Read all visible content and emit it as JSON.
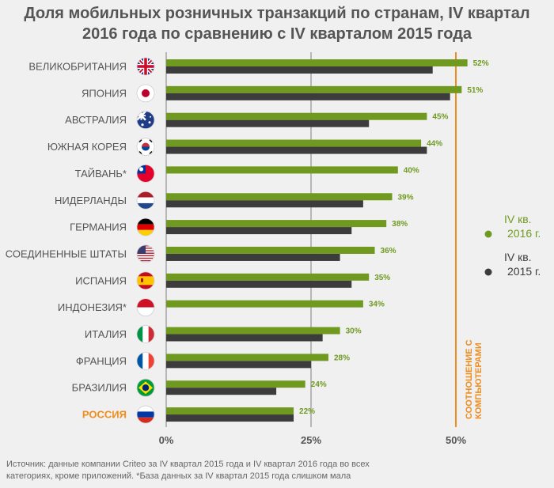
{
  "title": {
    "line1": "Доля мобильных розничных транзакций по странам, IV квартал",
    "line2": "2016 года по сравнению с IV  кварталом 2015 года"
  },
  "colors": {
    "green": "#6f9a1f",
    "dark": "#3c3c3c",
    "orange": "#ef8c1c",
    "grid": "#b7b7b7",
    "label": "#555555",
    "highlight": "#ef8c1c"
  },
  "reference_line": {
    "label": "СООТНОШЕНИЕ С КОМПЬЮТЕРАМИ",
    "value": 50
  },
  "footnote": {
    "line1": "Источник: данные компании Criteo за IV квартал 2015 года и IV квартал 2016 года во всех",
    "line2": "категориях, кроме приложений. *База данных за IV квартал 2015 года слишком мала"
  },
  "chart_data": {
    "type": "bar",
    "orientation": "horizontal",
    "categories": [
      "ВЕЛИКОБРИТАНИЯ",
      "ЯПОНИЯ",
      "АВСТРАЛИЯ",
      "ЮЖНАЯ КОРЕЯ",
      "ТАЙВАНЬ*",
      "НИДЕРЛАНДЫ",
      "ГЕРМАНИЯ",
      "СОЕДИНЕННЫЕ ШТАТЫ",
      "ИСПАНИЯ",
      "ИНДОНЕЗИЯ*",
      "ИТАЛИЯ",
      "ФРАНЦИЯ",
      "БРАЗИЛИЯ",
      "РОССИЯ"
    ],
    "highlight_category": "РОССИЯ",
    "flags": [
      "uk-flag-icon",
      "japan-flag-icon",
      "australia-flag-icon",
      "south-korea-flag-icon",
      "taiwan-flag-icon",
      "netherlands-flag-icon",
      "germany-flag-icon",
      "usa-flag-icon",
      "spain-flag-icon",
      "indonesia-flag-icon",
      "italy-flag-icon",
      "france-flag-icon",
      "brazil-flag-icon",
      "russia-flag-icon"
    ],
    "series": [
      {
        "name": "IV кв. 2016 г.",
        "color": "#6f9a1f",
        "values": [
          52,
          51,
          45,
          44,
          40,
          39,
          38,
          36,
          35,
          34,
          30,
          28,
          24,
          22
        ],
        "labels": [
          "52%",
          "51%",
          "45%",
          "44%",
          "40%",
          "39%",
          "38%",
          "36%",
          "35%",
          "34%",
          "30%",
          "28%",
          "24%",
          "22%"
        ]
      },
      {
        "name": "IV кв. 2015 г.",
        "color": "#3c3c3c",
        "values": [
          46,
          49,
          35,
          45,
          null,
          34,
          32,
          30,
          32,
          null,
          27,
          25,
          19,
          22
        ]
      }
    ],
    "x_ticks": [
      0,
      25,
      50
    ],
    "x_tick_labels": [
      "0%",
      "25%",
      "50%"
    ],
    "xlim": [
      0,
      54
    ],
    "grid": true,
    "legend_position": "right"
  }
}
